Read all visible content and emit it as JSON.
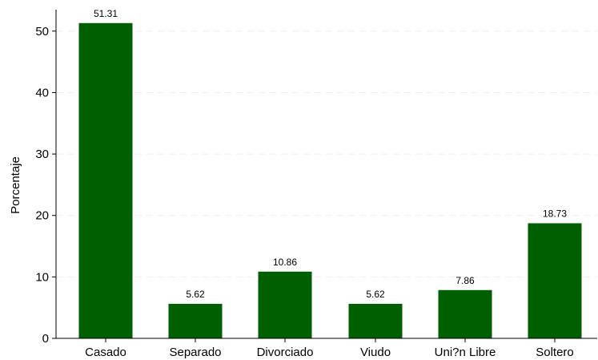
{
  "chart_data": {
    "type": "bar",
    "title": "",
    "xlabel": "",
    "ylabel": "Porcentaje",
    "categories": [
      "Casado",
      "Separado",
      "Divorciado",
      "Viudo",
      "Uni?n Libre",
      "Soltero"
    ],
    "values": [
      51.31,
      5.62,
      10.86,
      5.62,
      7.86,
      18.73
    ],
    "data_labels": [
      "51.31",
      "5.62",
      "10.86",
      "5.62",
      "7.86",
      "18.73"
    ],
    "ylim": [
      0,
      53.5
    ],
    "yticks": [
      0,
      10,
      20,
      30,
      40,
      50
    ],
    "grid": true,
    "legend": "none",
    "bar_color": "#005f00",
    "grid_color": "#eeeeee"
  }
}
